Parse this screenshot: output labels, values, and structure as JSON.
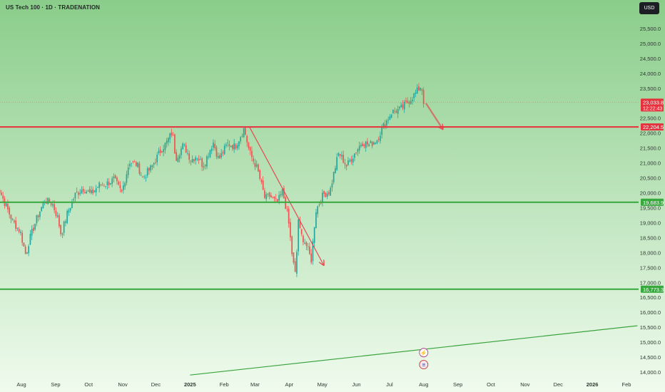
{
  "header": {
    "title": "US Tech 100 · 1D · TRADENATION",
    "currency": "USD"
  },
  "colors": {
    "bg_top": "#8acd8a",
    "bg_bottom": "#f0fbee",
    "resistance": "#e5323d",
    "support": "#36a83c",
    "trendline": "#3aa33e",
    "arrow": "#e34a52",
    "candle_up": "#26a69a",
    "candle_down": "#ef5350",
    "axis_text": "#2b3a2e"
  },
  "chart_data": {
    "type": "candlestick",
    "title": "US Tech 100 · 1D · TRADENATION",
    "ylim": [
      13850,
      26200
    ],
    "grid": false,
    "y_ticks": [
      {
        "value": 14000,
        "label": "14,000.0"
      },
      {
        "value": 14500,
        "label": "14,500.0"
      },
      {
        "value": 15000,
        "label": "15,000.0"
      },
      {
        "value": 15500,
        "label": "15,500.0"
      },
      {
        "value": 16000,
        "label": "16,000.0"
      },
      {
        "value": 16500,
        "label": "16,500.0"
      },
      {
        "value": 17000,
        "label": "17,000.0"
      },
      {
        "value": 17500,
        "label": "17,500.0"
      },
      {
        "value": 18000,
        "label": "18,000.0"
      },
      {
        "value": 18500,
        "label": "18,500.0"
      },
      {
        "value": 19000,
        "label": "19,000.0"
      },
      {
        "value": 19500,
        "label": "19,500.0"
      },
      {
        "value": 20000,
        "label": "20,000.0"
      },
      {
        "value": 20500,
        "label": "20,500.0"
      },
      {
        "value": 21000,
        "label": "21,000.0"
      },
      {
        "value": 21500,
        "label": "21,500.0"
      },
      {
        "value": 22000,
        "label": "22,000.0"
      },
      {
        "value": 22500,
        "label": "22,500.0"
      },
      {
        "value": 23500,
        "label": "23,500.0"
      },
      {
        "value": 24000,
        "label": "24,000.0"
      },
      {
        "value": 24500,
        "label": "24,500.0"
      },
      {
        "value": 25000,
        "label": "25,000.0"
      },
      {
        "value": 25500,
        "label": "25,500.0"
      }
    ],
    "x_ticks": [
      {
        "date": "2024-08-01",
        "label": "Aug"
      },
      {
        "date": "2024-09-01",
        "label": "Sep"
      },
      {
        "date": "2024-10-01",
        "label": "Oct"
      },
      {
        "date": "2024-11-01",
        "label": "Nov"
      },
      {
        "date": "2024-12-01",
        "label": "Dec"
      },
      {
        "date": "2025-01-01",
        "label": "2025",
        "bold": true
      },
      {
        "date": "2025-02-01",
        "label": "Feb"
      },
      {
        "date": "2025-03-01",
        "label": "Mar"
      },
      {
        "date": "2025-04-01",
        "label": "Apr"
      },
      {
        "date": "2025-05-01",
        "label": "May"
      },
      {
        "date": "2025-06-01",
        "label": "Jun"
      },
      {
        "date": "2025-07-01",
        "label": "Jul"
      },
      {
        "date": "2025-08-01",
        "label": "Aug"
      },
      {
        "date": "2025-09-01",
        "label": "Sep"
      },
      {
        "date": "2025-10-01",
        "label": "Oct"
      },
      {
        "date": "2025-11-01",
        "label": "Nov"
      },
      {
        "date": "2025-12-01",
        "label": "Dec"
      },
      {
        "date": "2026-01-01",
        "label": "2026",
        "bold": true
      },
      {
        "date": "2026-02-01",
        "label": "Feb"
      }
    ],
    "price_path": [
      [
        "2024-07-08",
        20400
      ],
      [
        "2024-07-12",
        20100
      ],
      [
        "2024-07-17",
        19650
      ],
      [
        "2024-07-24",
        19050
      ],
      [
        "2024-07-31",
        18700
      ],
      [
        "2024-08-05",
        17900
      ],
      [
        "2024-08-08",
        18400
      ],
      [
        "2024-08-15",
        19150
      ],
      [
        "2024-08-22",
        19750
      ],
      [
        "2024-08-29",
        19650
      ],
      [
        "2024-09-03",
        19150
      ],
      [
        "2024-09-06",
        18600
      ],
      [
        "2024-09-12",
        19350
      ],
      [
        "2024-09-19",
        19950
      ],
      [
        "2024-09-26",
        20150
      ],
      [
        "2024-10-03",
        19950
      ],
      [
        "2024-10-10",
        20250
      ],
      [
        "2024-10-17",
        20300
      ],
      [
        "2024-10-24",
        20450
      ],
      [
        "2024-10-31",
        20000
      ],
      [
        "2024-11-07",
        21050
      ],
      [
        "2024-11-14",
        20950
      ],
      [
        "2024-11-19",
        20500
      ],
      [
        "2024-11-27",
        20850
      ],
      [
        "2024-12-05",
        21400
      ],
      [
        "2024-12-11",
        21700
      ],
      [
        "2024-12-16",
        22050
      ],
      [
        "2024-12-19",
        21150
      ],
      [
        "2024-12-26",
        21600
      ],
      [
        "2025-01-02",
        21100
      ],
      [
        "2025-01-07",
        21250
      ],
      [
        "2025-01-13",
        20900
      ],
      [
        "2025-01-22",
        21700
      ],
      [
        "2025-01-27",
        21100
      ],
      [
        "2025-02-04",
        21650
      ],
      [
        "2025-02-11",
        21550
      ],
      [
        "2025-02-19",
        22150
      ],
      [
        "2025-02-24",
        21350
      ],
      [
        "2025-03-03",
        20800
      ],
      [
        "2025-03-10",
        19800
      ],
      [
        "2025-03-14",
        19900
      ],
      [
        "2025-03-21",
        19650
      ],
      [
        "2025-03-26",
        20050
      ],
      [
        "2025-03-31",
        19150
      ],
      [
        "2025-04-04",
        17800
      ],
      [
        "2025-04-07",
        17150
      ],
      [
        "2025-04-09",
        19200
      ],
      [
        "2025-04-11",
        18650
      ],
      [
        "2025-04-16",
        18300
      ],
      [
        "2025-04-21",
        17750
      ],
      [
        "2025-04-25",
        19400
      ],
      [
        "2025-05-02",
        19950
      ],
      [
        "2025-05-08",
        20050
      ],
      [
        "2025-05-12",
        20750
      ],
      [
        "2025-05-16",
        21350
      ],
      [
        "2025-05-23",
        20900
      ],
      [
        "2025-05-30",
        21300
      ],
      [
        "2025-06-06",
        21700
      ],
      [
        "2025-06-13",
        21600
      ],
      [
        "2025-06-20",
        21800
      ],
      [
        "2025-06-25",
        22200
      ],
      [
        "2025-07-03",
        22700
      ],
      [
        "2025-07-11",
        22800
      ],
      [
        "2025-07-18",
        23050
      ],
      [
        "2025-07-25",
        23350
      ],
      [
        "2025-07-30",
        23600
      ],
      [
        "2025-08-01",
        23033.8
      ]
    ],
    "horizontal_levels": [
      {
        "name": "resistance",
        "value": 22204.5,
        "label": "22,204.5",
        "color": "#e5323d"
      },
      {
        "name": "support",
        "value": 19683.9,
        "label": "19,683.9",
        "color": "#36a83c"
      },
      {
        "name": "support-low",
        "value": 16773.3,
        "label": "16,773.3",
        "color": "#36a83c"
      }
    ],
    "current_price": {
      "value": 23033.8,
      "label": "23,033.8",
      "countdown": "12:22:43",
      "color": "#e5323d"
    },
    "trendline": {
      "start": [
        "2025-01-01",
        13900
      ],
      "end": [
        "2026-02-11",
        15550
      ]
    },
    "down_arrow": {
      "start": [
        "2025-02-24",
        22200
      ],
      "end": [
        "2025-05-02",
        17600
      ]
    },
    "small_arrow": {
      "start": [
        "2025-08-03",
        23000
      ],
      "end": [
        "2025-08-18",
        22150
      ]
    },
    "events": [
      {
        "name": "earnings-event",
        "glyph": "⚡",
        "date": "2025-08-01",
        "value": 14650
      },
      {
        "name": "us-flag-event",
        "glyph": "≡",
        "date": "2025-08-01",
        "value": 14250
      }
    ]
  }
}
